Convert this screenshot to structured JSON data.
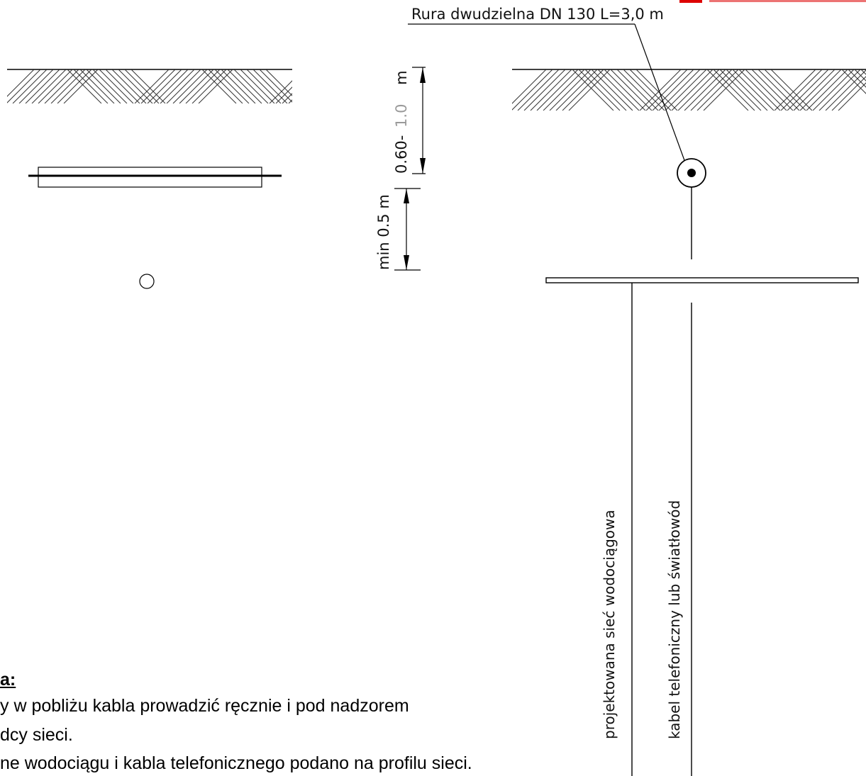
{
  "labels": {
    "pipe": "Rura dwudzielna  DN 130  L=3,0 m",
    "depth_min": "0.60-",
    "depth_max": "1.0",
    "depth_unit": "m",
    "clearance": "min 0.5 m",
    "water_network": "projektowana  sieć wodociągowa",
    "telecom_cable": "kabel telefoniczny lub światłowód"
  },
  "notes": {
    "heading": "a:",
    "line1": "y w pobliżu kabla prowadzić ręcznie i pod nadzorem",
    "line2": "dcy sieci.",
    "line3": "ne wodociągu i kabla telefonicznego podano na profilu sieci."
  },
  "colors": {
    "line": "#000000",
    "hatch": "#333333",
    "depth_max_text": "#9a9a9a",
    "red_marks": "#dd0000"
  }
}
